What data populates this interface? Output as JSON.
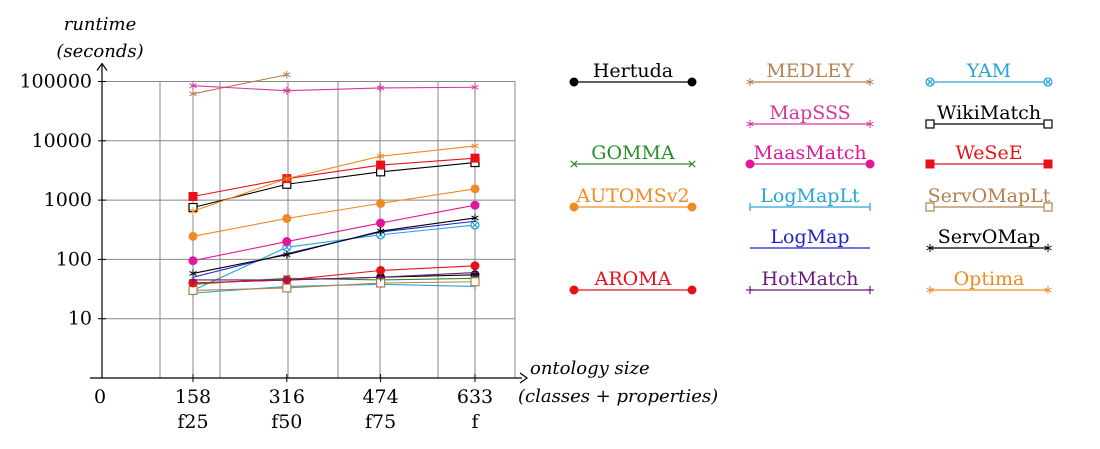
{
  "chart_data": {
    "type": "line",
    "ylabel_line1": "runtime",
    "ylabel_line2": "(seconds)",
    "xlabel_line1": "ontology  size",
    "xlabel_line2": "(classes + properties)",
    "y_scale": "log",
    "ylim": [
      1,
      100000
    ],
    "y_ticks": [
      {
        "value": 10,
        "label": "10"
      },
      {
        "value": 100,
        "label": "100"
      },
      {
        "value": 1000,
        "label": "1000"
      },
      {
        "value": 10000,
        "label": "10000"
      },
      {
        "value": 100000,
        "label": "100000"
      }
    ],
    "x_origin_label": "0",
    "x_ticks": [
      {
        "value": 158,
        "label": "158",
        "sublabel": "f25"
      },
      {
        "value": 316,
        "label": "316",
        "sublabel": "f50"
      },
      {
        "value": 474,
        "label": "474",
        "sublabel": "f75"
      },
      {
        "value": 633,
        "label": "633",
        "sublabel": "f"
      }
    ],
    "xlim": [
      0,
      720
    ],
    "legend_position": "right",
    "series": [
      {
        "name": "Hertuda",
        "color": "#000000",
        "marker": "circle",
        "x": [
          158,
          316,
          474,
          633
        ],
        "values": [
          40,
          45,
          50,
          55
        ]
      },
      {
        "name": "MEDLEY",
        "color": "#b5804e",
        "marker": "star",
        "x": [
          158,
          316
        ],
        "values": [
          62000,
          130000
        ]
      },
      {
        "name": "YAM",
        "color": "#29a3d6",
        "marker": "otimes",
        "x": [
          158,
          316,
          474,
          633
        ],
        "values": [
          30,
          160,
          260,
          380
        ]
      },
      {
        "name": "MapSSS",
        "color": "#d6379e",
        "marker": "star",
        "x": [
          158,
          316,
          474,
          633
        ],
        "values": [
          85000,
          70000,
          78000,
          80000
        ]
      },
      {
        "name": "WikiMatch",
        "color": "#000000",
        "marker": "square-open",
        "x": [
          158,
          316,
          474,
          633
        ],
        "values": [
          750,
          1850,
          3000,
          4300
        ]
      },
      {
        "name": "GOMMA",
        "color": "#2e8b2e",
        "marker": "x",
        "x": [
          158,
          316,
          474,
          633
        ],
        "values": [
          38,
          48,
          45,
          48
        ]
      },
      {
        "name": "MaasMatch",
        "color": "#e0179a",
        "marker": "circle",
        "x": [
          158,
          316,
          474,
          633
        ],
        "values": [
          95,
          200,
          410,
          820
        ]
      },
      {
        "name": "WeSeE",
        "color": "#e8111a",
        "marker": "square",
        "x": [
          158,
          316,
          474,
          633
        ],
        "values": [
          1150,
          2300,
          3900,
          5100
        ]
      },
      {
        "name": "AUTOMSv2",
        "color": "#f08a24",
        "marker": "circle",
        "x": [
          158,
          316,
          474,
          633
        ],
        "values": [
          245,
          490,
          880,
          1550
        ]
      },
      {
        "name": "LogMapLt",
        "color": "#29a3d6",
        "marker": "bar",
        "x": [
          158,
          316,
          474,
          633
        ],
        "values": [
          27,
          35,
          38,
          35
        ]
      },
      {
        "name": "ServOMapLt",
        "color": "#b5804e",
        "marker": "square-open",
        "x": [
          158,
          316,
          474,
          633
        ],
        "values": [
          30,
          33,
          40,
          42
        ]
      },
      {
        "name": "LogMap",
        "color": "#2222cc",
        "marker": "none",
        "x": [
          158,
          316,
          474,
          633
        ],
        "values": [
          50,
          125,
          290,
          440
        ]
      },
      {
        "name": "ServOMap",
        "color": "#000000",
        "marker": "star",
        "x": [
          158,
          316,
          474,
          633
        ],
        "values": [
          58,
          120,
          300,
          500
        ]
      },
      {
        "name": "AROMA",
        "color": "#e8111a",
        "marker": "circle",
        "x": [
          158,
          316,
          474,
          633
        ],
        "values": [
          40,
          45,
          65,
          78
        ]
      },
      {
        "name": "HotMatch",
        "color": "#6a1b7a",
        "marker": "plus",
        "x": [
          158,
          316,
          474,
          633
        ],
        "values": [
          45,
          45,
          50,
          60
        ]
      },
      {
        "name": "Optima",
        "color": "#f08a24",
        "marker": "star",
        "x": [
          158,
          316,
          474,
          633
        ],
        "values": [
          650,
          2300,
          5500,
          8200
        ]
      }
    ],
    "legend_layout": [
      [
        "Hertuda",
        "MEDLEY",
        "YAM"
      ],
      [
        null,
        "MapSSS",
        "WikiMatch"
      ],
      [
        "GOMMA",
        "MaasMatch",
        "WeSeE"
      ],
      [
        "AUTOMSv2",
        "LogMapLt",
        "ServOMapLt"
      ],
      [
        null,
        "LogMap",
        "ServOMap"
      ],
      [
        "AROMA",
        "HotMatch",
        "Optima"
      ]
    ]
  }
}
